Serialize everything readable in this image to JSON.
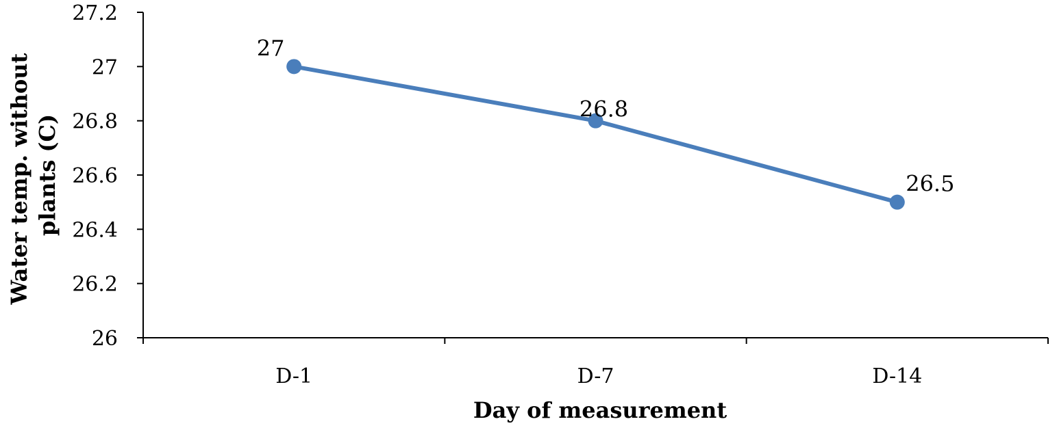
{
  "chart_data": {
    "type": "line",
    "categories": [
      "D-1",
      "D-7",
      "D-14"
    ],
    "series": [
      {
        "values": [
          27,
          26.8,
          26.5
        ],
        "data_labels": [
          "27",
          "26.8",
          "26.5"
        ],
        "color": "#4a7ebb"
      }
    ],
    "xlabel": "Day of measurement",
    "ylabel_lines": [
      "Water  temp. without",
      "plants (C)"
    ],
    "ylim": [
      26,
      27.2
    ],
    "yticks": [
      26,
      26.2,
      26.4,
      26.6,
      26.8,
      27,
      27.2
    ],
    "ytick_labels": [
      "26",
      "26.2",
      "26.4",
      "26.6",
      "26.8",
      "27",
      "27.2"
    ],
    "grid": false,
    "legend": "none",
    "axis_color": "#000000"
  }
}
